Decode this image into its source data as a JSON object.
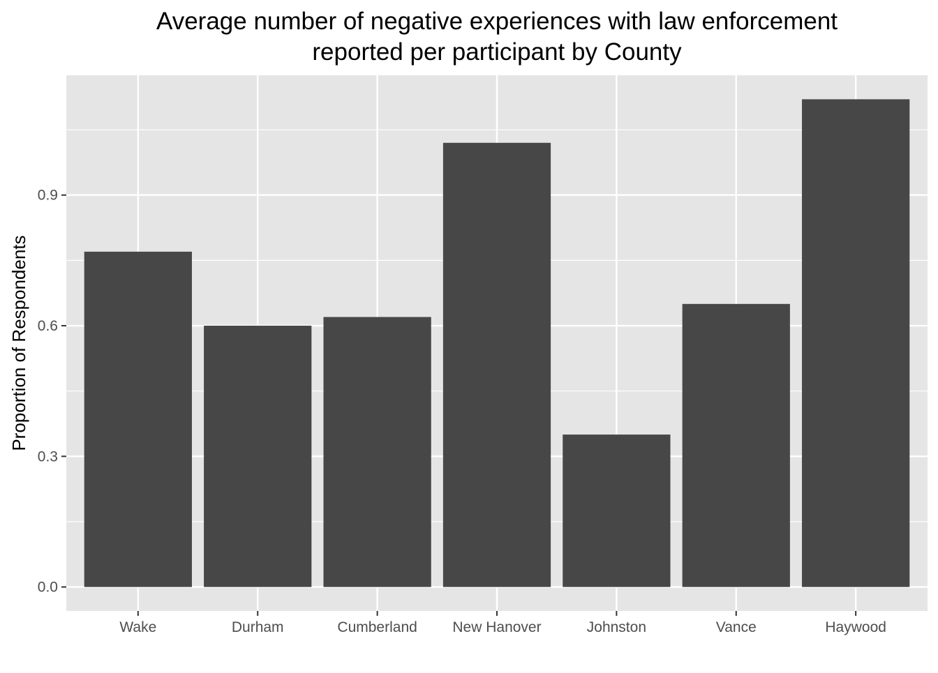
{
  "chart_data": {
    "type": "bar",
    "title_lines": [
      "Average number of negative experiences with law enforcement",
      "reported per participant by County"
    ],
    "xlabel": "",
    "ylabel": "Proportion of Respondents",
    "categories": [
      "Wake",
      "Durham",
      "Cumberland",
      "New Hanover",
      "Johnston",
      "Vance",
      "Haywood"
    ],
    "values": [
      0.77,
      0.6,
      0.62,
      1.02,
      0.35,
      0.65,
      1.12
    ],
    "ylim": [
      -0.055,
      1.175
    ],
    "yticks": [
      0.0,
      0.3,
      0.6,
      0.9
    ],
    "ytick_labels": [
      "0.0",
      "0.3",
      "0.6",
      "0.9"
    ],
    "grid": true,
    "legend": "none",
    "colors": {
      "bar": "#474747",
      "panel_background": "#e5e5e5",
      "grid": "#ffffff",
      "tick_label": "#4d4d4d",
      "tick_mark": "#333333"
    }
  }
}
